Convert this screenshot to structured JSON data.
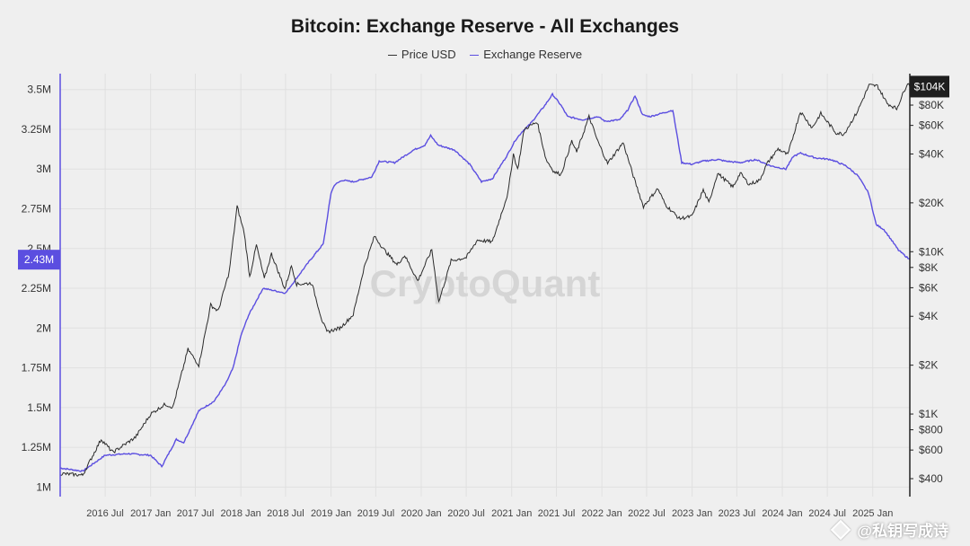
{
  "chart_data": {
    "type": "line",
    "title": "Bitcoin: Exchange Reserve - All Exchanges",
    "legend_position": "top-center",
    "grid": true,
    "colors": {
      "price": "#2b2b2b",
      "reserve": "#5b4ee0",
      "background": "#efefef",
      "grid": "#e0e0e0"
    },
    "x_labels": [
      "2016 Jul",
      "2017 Jan",
      "2017 Jul",
      "2018 Jan",
      "2018 Jul",
      "2019 Jan",
      "2019 Jul",
      "2020 Jan",
      "2020 Jul",
      "2021 Jan",
      "2021 Jul",
      "2022 Jan",
      "2022 Jul",
      "2023 Jan",
      "2023 Jul",
      "2024 Jan",
      "2024 Jul",
      "2025 Jan"
    ],
    "xlim": [
      "2016-01-01",
      "2025-05-31"
    ],
    "left_axis": {
      "series": "Exchange Reserve",
      "ticks": [
        {
          "v": 1000000,
          "label": "1M"
        },
        {
          "v": 1250000,
          "label": "1.25M"
        },
        {
          "v": 1500000,
          "label": "1.5M"
        },
        {
          "v": 1750000,
          "label": "1.75M"
        },
        {
          "v": 2000000,
          "label": "2M"
        },
        {
          "v": 2250000,
          "label": "2.25M"
        },
        {
          "v": 2500000,
          "label": "2.5M"
        },
        {
          "v": 2750000,
          "label": "2.75M"
        },
        {
          "v": 3000000,
          "label": "3M"
        },
        {
          "v": 3250000,
          "label": "3.25M"
        },
        {
          "v": 3500000,
          "label": "3.5M"
        }
      ],
      "current_label": "2.43M",
      "current_value": 2430000
    },
    "right_axis": {
      "series": "Price USD",
      "scale": "log",
      "ticks": [
        {
          "v": 400,
          "label": "$400"
        },
        {
          "v": 600,
          "label": "$600"
        },
        {
          "v": 800,
          "label": "$800"
        },
        {
          "v": 1000,
          "label": "$1K"
        },
        {
          "v": 2000,
          "label": "$2K"
        },
        {
          "v": 4000,
          "label": "$4K"
        },
        {
          "v": 6000,
          "label": "$6K"
        },
        {
          "v": 8000,
          "label": "$8K"
        },
        {
          "v": 10000,
          "label": "$10K"
        },
        {
          "v": 20000,
          "label": "$20K"
        },
        {
          "v": 40000,
          "label": "$40K"
        },
        {
          "v": 60000,
          "label": "$60K"
        },
        {
          "v": 80000,
          "label": "$80K"
        }
      ],
      "current_label": "$104K",
      "current_value": 104000
    },
    "series": [
      {
        "name": "Price USD",
        "axis": "right",
        "points": [
          [
            "2016-01-01",
            430
          ],
          [
            "2016-04-01",
            420
          ],
          [
            "2016-06-15",
            700
          ],
          [
            "2016-08-01",
            580
          ],
          [
            "2016-11-01",
            720
          ],
          [
            "2017-01-01",
            1000
          ],
          [
            "2017-03-01",
            1150
          ],
          [
            "2017-04-01",
            1100
          ],
          [
            "2017-06-01",
            2500
          ],
          [
            "2017-07-15",
            2000
          ],
          [
            "2017-09-01",
            4700
          ],
          [
            "2017-10-01",
            4300
          ],
          [
            "2017-11-15",
            7500
          ],
          [
            "2017-12-17",
            19000
          ],
          [
            "2018-01-15",
            13000
          ],
          [
            "2018-02-06",
            7000
          ],
          [
            "2018-03-05",
            11000
          ],
          [
            "2018-04-06",
            6800
          ],
          [
            "2018-05-05",
            9700
          ],
          [
            "2018-06-28",
            5900
          ],
          [
            "2018-07-25",
            8200
          ],
          [
            "2018-08-15",
            6300
          ],
          [
            "2018-10-15",
            6400
          ],
          [
            "2018-11-25",
            3800
          ],
          [
            "2018-12-15",
            3200
          ],
          [
            "2019-02-08",
            3400
          ],
          [
            "2019-04-01",
            4100
          ],
          [
            "2019-05-15",
            8000
          ],
          [
            "2019-06-26",
            12500
          ],
          [
            "2019-08-01",
            10400
          ],
          [
            "2019-09-25",
            8300
          ],
          [
            "2019-10-26",
            9500
          ],
          [
            "2019-12-18",
            6600
          ],
          [
            "2020-02-13",
            10300
          ],
          [
            "2020-03-12",
            4900
          ],
          [
            "2020-05-01",
            8800
          ],
          [
            "2020-07-01",
            9200
          ],
          [
            "2020-08-15",
            11800
          ],
          [
            "2020-10-15",
            11500
          ],
          [
            "2020-12-17",
            23000
          ],
          [
            "2021-01-08",
            40000
          ],
          [
            "2021-01-25",
            32000
          ],
          [
            "2021-02-21",
            57000
          ],
          [
            "2021-04-14",
            63000
          ],
          [
            "2021-05-20",
            37000
          ],
          [
            "2021-06-22",
            31000
          ],
          [
            "2021-07-20",
            30000
          ],
          [
            "2021-09-01",
            48000
          ],
          [
            "2021-09-21",
            41000
          ],
          [
            "2021-11-10",
            68000
          ],
          [
            "2021-12-15",
            48000
          ],
          [
            "2022-01-24",
            35000
          ],
          [
            "2022-03-28",
            47000
          ],
          [
            "2022-05-12",
            28000
          ],
          [
            "2022-06-18",
            19000
          ],
          [
            "2022-08-15",
            24500
          ],
          [
            "2022-09-15",
            19500
          ],
          [
            "2022-11-10",
            16000
          ],
          [
            "2022-12-31",
            16500
          ],
          [
            "2023-02-15",
            24000
          ],
          [
            "2023-03-10",
            20000
          ],
          [
            "2023-04-14",
            30500
          ],
          [
            "2023-06-15",
            25000
          ],
          [
            "2023-07-15",
            30500
          ],
          [
            "2023-08-20",
            26000
          ],
          [
            "2023-10-01",
            27500
          ],
          [
            "2023-11-01",
            35000
          ],
          [
            "2023-12-15",
            43000
          ],
          [
            "2024-01-23",
            39500
          ],
          [
            "2024-03-14",
            73000
          ],
          [
            "2024-05-01",
            58000
          ],
          [
            "2024-06-05",
            71000
          ],
          [
            "2024-08-05",
            54000
          ],
          [
            "2024-09-06",
            53000
          ],
          [
            "2024-10-29",
            72000
          ],
          [
            "2024-12-17",
            106000
          ],
          [
            "2025-01-20",
            105000
          ],
          [
            "2025-02-28",
            82000
          ],
          [
            "2025-04-08",
            76000
          ],
          [
            "2025-05-22",
            110000
          ],
          [
            "2025-05-31",
            104000
          ]
        ]
      },
      {
        "name": "Exchange Reserve",
        "axis": "left",
        "points": [
          [
            "2016-01-01",
            1120000
          ],
          [
            "2016-04-01",
            1100000
          ],
          [
            "2016-07-01",
            1200000
          ],
          [
            "2016-10-01",
            1210000
          ],
          [
            "2017-01-01",
            1200000
          ],
          [
            "2017-02-15",
            1130000
          ],
          [
            "2017-04-15",
            1300000
          ],
          [
            "2017-05-15",
            1280000
          ],
          [
            "2017-07-15",
            1480000
          ],
          [
            "2017-09-15",
            1540000
          ],
          [
            "2017-11-01",
            1650000
          ],
          [
            "2017-12-01",
            1750000
          ],
          [
            "2018-01-01",
            1950000
          ],
          [
            "2018-02-01",
            2080000
          ],
          [
            "2018-04-01",
            2250000
          ],
          [
            "2018-07-01",
            2220000
          ],
          [
            "2018-09-01",
            2350000
          ],
          [
            "2018-10-15",
            2440000
          ],
          [
            "2018-12-01",
            2530000
          ],
          [
            "2019-01-01",
            2850000
          ],
          [
            "2019-01-15",
            2900000
          ],
          [
            "2019-02-15",
            2930000
          ],
          [
            "2019-04-01",
            2920000
          ],
          [
            "2019-06-15",
            2950000
          ],
          [
            "2019-07-15",
            3050000
          ],
          [
            "2019-09-15",
            3040000
          ],
          [
            "2019-12-01",
            3120000
          ],
          [
            "2020-01-15",
            3150000
          ],
          [
            "2020-02-08",
            3210000
          ],
          [
            "2020-03-10",
            3150000
          ],
          [
            "2020-05-15",
            3120000
          ],
          [
            "2020-07-15",
            3030000
          ],
          [
            "2020-09-01",
            2920000
          ],
          [
            "2020-10-15",
            2940000
          ],
          [
            "2020-12-15",
            3090000
          ],
          [
            "2021-01-15",
            3180000
          ],
          [
            "2021-02-15",
            3240000
          ],
          [
            "2021-03-15",
            3280000
          ],
          [
            "2021-05-15",
            3400000
          ],
          [
            "2021-06-15",
            3470000
          ],
          [
            "2021-07-20",
            3400000
          ],
          [
            "2021-08-15",
            3330000
          ],
          [
            "2021-10-15",
            3310000
          ],
          [
            "2021-12-15",
            3330000
          ],
          [
            "2022-01-15",
            3300000
          ],
          [
            "2022-03-15",
            3310000
          ],
          [
            "2022-04-15",
            3370000
          ],
          [
            "2022-05-15",
            3460000
          ],
          [
            "2022-06-15",
            3340000
          ],
          [
            "2022-07-15",
            3330000
          ],
          [
            "2022-10-15",
            3370000
          ],
          [
            "2022-11-08",
            3150000
          ],
          [
            "2022-11-20",
            3040000
          ],
          [
            "2022-12-31",
            3030000
          ],
          [
            "2023-02-15",
            3050000
          ],
          [
            "2023-04-15",
            3060000
          ],
          [
            "2023-05-15",
            3050000
          ],
          [
            "2023-07-15",
            3040000
          ],
          [
            "2023-09-15",
            3060000
          ],
          [
            "2023-11-15",
            3020000
          ],
          [
            "2024-01-15",
            3000000
          ],
          [
            "2024-02-15",
            3080000
          ],
          [
            "2024-03-15",
            3100000
          ],
          [
            "2024-05-15",
            3070000
          ],
          [
            "2024-07-15",
            3060000
          ],
          [
            "2024-09-15",
            3020000
          ],
          [
            "2024-11-01",
            2960000
          ],
          [
            "2024-12-15",
            2850000
          ],
          [
            "2025-01-15",
            2650000
          ],
          [
            "2025-02-15",
            2620000
          ],
          [
            "2025-03-15",
            2560000
          ],
          [
            "2025-04-15",
            2490000
          ],
          [
            "2025-05-31",
            2430000
          ]
        ]
      }
    ]
  },
  "watermark": "CryptoQuant",
  "footer_watermark": "@私钥写成诗"
}
